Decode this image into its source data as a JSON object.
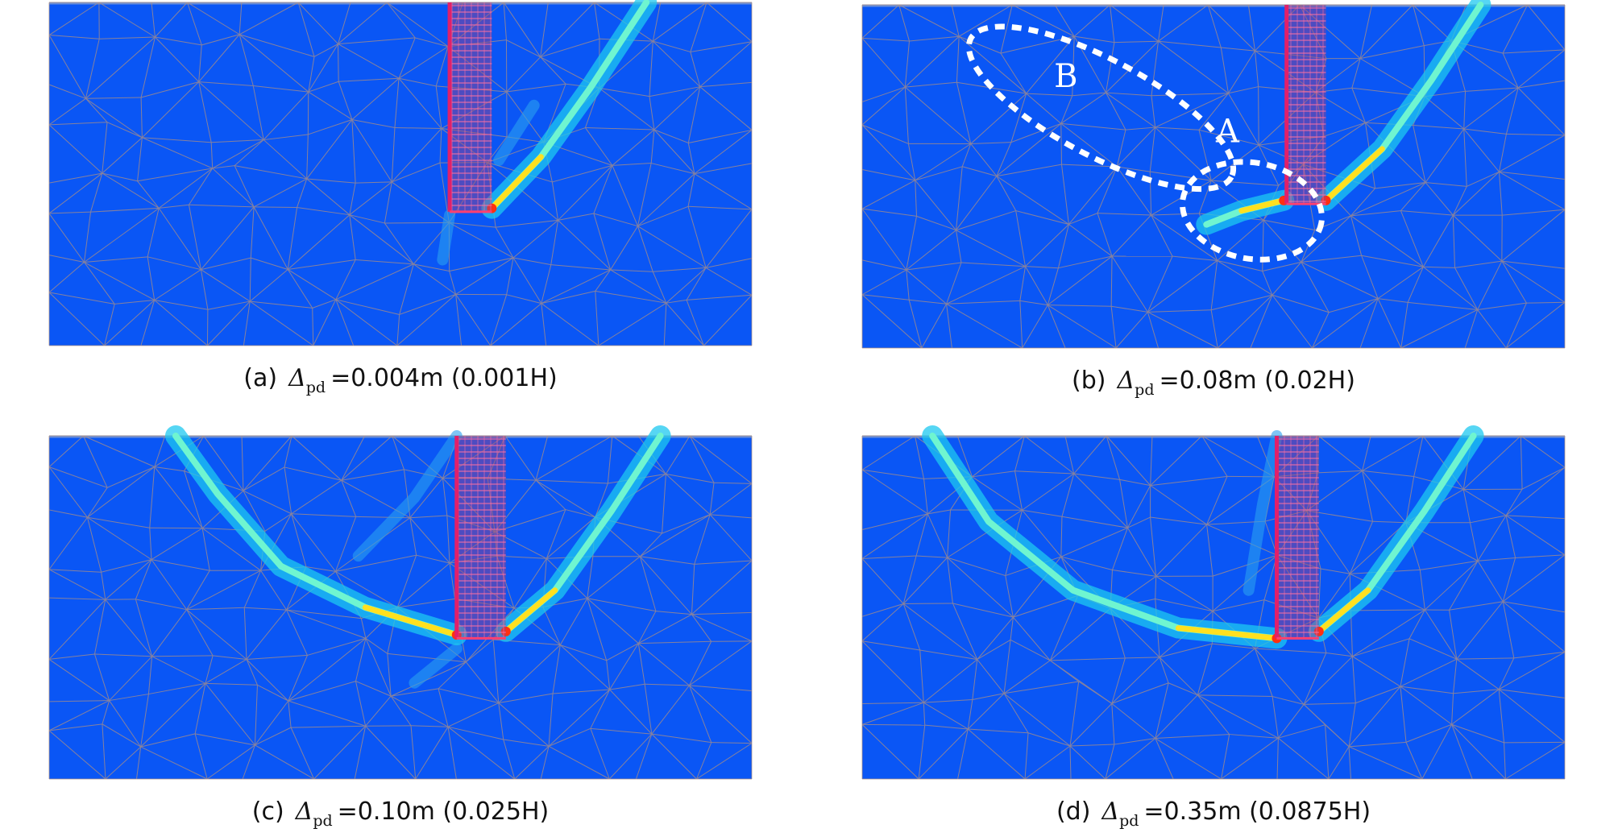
{
  "panels": [
    {
      "label": "(a)",
      "symbol": "Δ",
      "subscript": "pd",
      "value": "=0.004m (0.001H)"
    },
    {
      "label": "(b)",
      "symbol": "Δ",
      "subscript": "pd",
      "value": "=0.08m (0.02H)",
      "annotations": [
        "B",
        "A"
      ]
    },
    {
      "label": "(c)",
      "symbol": "Δ",
      "subscript": "pd",
      "value": "=0.10m (0.025H)"
    },
    {
      "label": "(d)",
      "symbol": "Δ",
      "subscript": "pd",
      "value": "=0.35m (0.0875H)"
    }
  ]
}
